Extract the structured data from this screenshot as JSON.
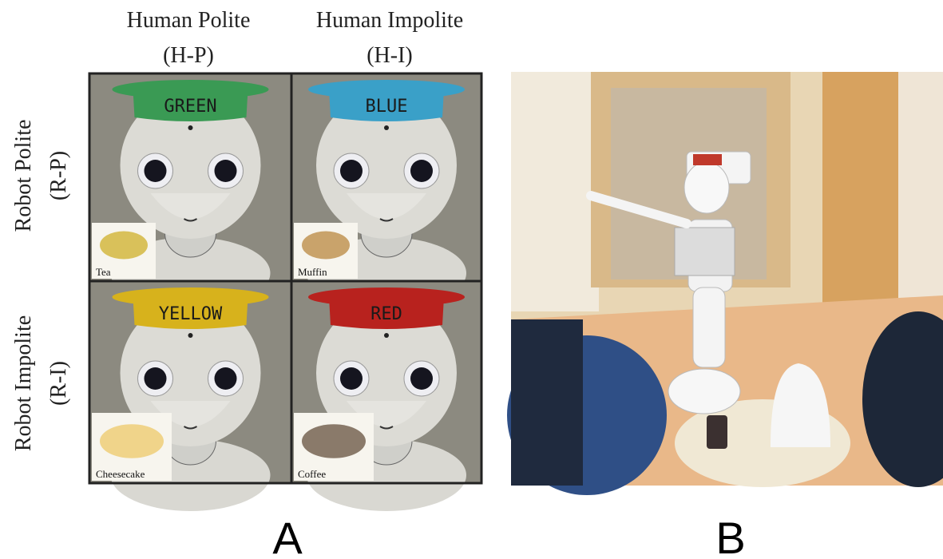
{
  "panel_a": {
    "column_headers": [
      {
        "name": "Human Polite",
        "code": "(H-P)"
      },
      {
        "name": "Human Impolite",
        "code": "(H-I)"
      }
    ],
    "row_headers": [
      {
        "name": "Robot Polite",
        "code": "(R-P)"
      },
      {
        "name": "Robot Impolite",
        "code": "(R-I)"
      }
    ],
    "cells": [
      {
        "hat": "GREEN",
        "food": "Tea"
      },
      {
        "hat": "BLUE",
        "food": "Muffin"
      },
      {
        "hat": "YELLOW",
        "food": "Cheesecake"
      },
      {
        "hat": "RED",
        "food": "Coffee"
      }
    ]
  },
  "panel_labels": [
    "A",
    "B"
  ]
}
